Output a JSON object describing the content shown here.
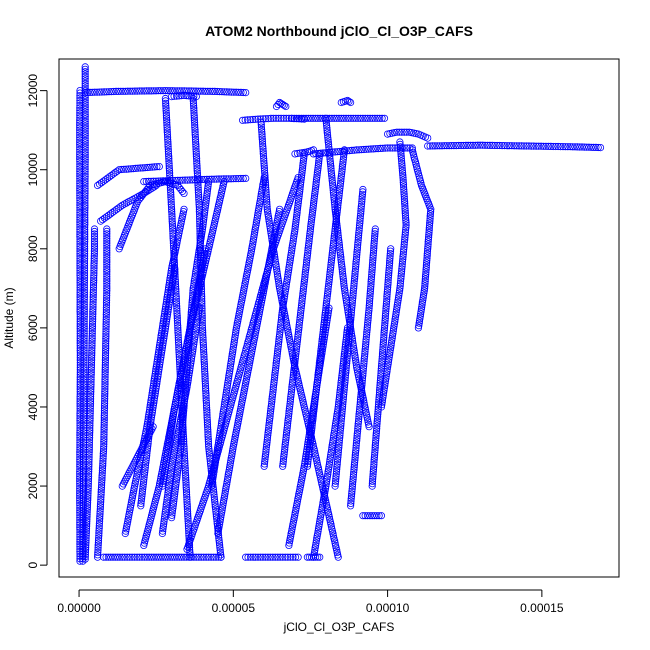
{
  "chart_data": {
    "type": "scatter",
    "title": "ATOM2 Northbound jClO_Cl_O3P_CAFS",
    "xlabel": "jClO_Cl_O3P_CAFS",
    "ylabel": "Altitude (m)",
    "xlim": [
      -6.5e-06,
      0.000175
    ],
    "ylim": [
      -300,
      12800
    ],
    "xticks": [
      0,
      5e-05,
      0.0001,
      0.00015
    ],
    "xtick_labels": [
      "0.00000",
      "0.00005",
      "0.00010",
      "0.00015"
    ],
    "yticks": [
      0,
      2000,
      4000,
      6000,
      8000,
      10000,
      12000
    ],
    "ytick_labels": [
      "0",
      "2000",
      "4000",
      "6000",
      "8000",
      "10000",
      "12000"
    ],
    "grid": false,
    "marker": "open-circle",
    "color": "#0000ff",
    "series": [
      {
        "x": [
          3e-07,
          2e-07,
          4e-07,
          3e-07,
          2e-07,
          3e-07
        ],
        "y": [
          100,
          2000,
          5000,
          8000,
          11000,
          12000
        ]
      },
      {
        "x": [
          1.2e-06,
          1.4e-06,
          1.6e-06,
          1.8e-06,
          2e-06,
          2e-06
        ],
        "y": [
          100,
          2000,
          5000,
          8000,
          10500,
          12600
        ]
      },
      {
        "x": [
          2e-06,
          3e-06,
          4e-06,
          5e-06,
          5e-06
        ],
        "y": [
          150,
          2000,
          5000,
          8000,
          8500
        ]
      },
      {
        "x": [
          6e-06,
          8e-06,
          9e-06,
          9e-06
        ],
        "y": [
          200,
          3000,
          7000,
          8500
        ]
      },
      {
        "x": [
          2e-06,
          1.2e-05,
          2.8e-05,
          4.4e-05,
          5.4e-05
        ],
        "y": [
          11950,
          11980,
          12000,
          11980,
          11950
        ]
      },
      {
        "x": [
          2.8e-05,
          3e-05,
          3.2e-05,
          3.4e-05,
          3.6e-05
        ],
        "y": [
          11800,
          9000,
          6000,
          3000,
          200
        ]
      },
      {
        "x": [
          3e-05,
          3.4e-05,
          3.8e-05
        ],
        "y": [
          11850,
          11880,
          11850
        ]
      },
      {
        "x": [
          3.7e-05,
          3.9e-05,
          4e-05,
          4.2e-05,
          4.6e-05
        ],
        "y": [
          11800,
          9000,
          6000,
          3000,
          200
        ]
      },
      {
        "x": [
          6e-06,
          1.3e-05,
          2.6e-05
        ],
        "y": [
          9600,
          10000,
          10080
        ]
      },
      {
        "x": [
          2.1e-05,
          3.2e-05,
          4.3e-05,
          5.4e-05
        ],
        "y": [
          9700,
          9730,
          9760,
          9780
        ]
      },
      {
        "x": [
          1.3e-05,
          1.9e-05,
          2.3e-05,
          2.8e-05,
          3.2e-05,
          3.4e-05
        ],
        "y": [
          8000,
          9200,
          9600,
          9700,
          9600,
          9400
        ]
      },
      {
        "x": [
          7e-06,
          1.4e-05,
          2.1e-05,
          2.5e-05
        ],
        "y": [
          8700,
          9100,
          9400,
          9600
        ]
      },
      {
        "x": [
          4.2e-05,
          4e-05,
          3.7e-05,
          3.5e-05,
          3.3e-05,
          3e-05
        ],
        "y": [
          9700,
          8500,
          7000,
          5000,
          3000,
          1200
        ]
      },
      {
        "x": [
          4.7e-05,
          4.2e-05,
          3.6e-05,
          3.1e-05,
          2.7e-05
        ],
        "y": [
          9700,
          8000,
          6000,
          4000,
          2000
        ]
      },
      {
        "x": [
          1.5e-05,
          1.8e-05,
          2.2e-05,
          2.6e-05,
          3e-05,
          3.4e-05
        ],
        "y": [
          800,
          2000,
          3500,
          5500,
          7500,
          9000
        ]
      },
      {
        "x": [
          2.1e-05,
          2.6e-05,
          3.1e-05,
          3.6e-05,
          4.1e-05
        ],
        "y": [
          500,
          2000,
          4000,
          6000,
          8000
        ]
      },
      {
        "x": [
          3.5e-05,
          4.2e-05,
          4.9e-05,
          5.6e-05,
          6.3e-05,
          7.1e-05
        ],
        "y": [
          400,
          2000,
          4000,
          6000,
          8000,
          9800
        ]
      },
      {
        "x": [
          5.3e-05,
          5.8e-05,
          6.3e-05,
          6.8e-05,
          7.3e-05
        ],
        "y": [
          11250,
          11280,
          11300,
          11300,
          11280
        ]
      },
      {
        "x": [
          6.9e-05,
          8.5e-05,
          9.9e-05
        ],
        "y": [
          11300,
          11300,
          11300
        ]
      },
      {
        "x": [
          5.9e-05,
          6.1e-05,
          6.5e-05,
          7e-05,
          7.6e-05,
          8.4e-05
        ],
        "y": [
          11200,
          9000,
          7000,
          5000,
          3000,
          200
        ]
      },
      {
        "x": [
          6.7e-05,
          6.6e-05,
          6.5e-05,
          6.4e-05
        ],
        "y": [
          11600,
          11650,
          11700,
          11600
        ]
      },
      {
        "x": [
          8.5e-05,
          8.7e-05,
          8.8e-05
        ],
        "y": [
          11700,
          11750,
          11700
        ]
      },
      {
        "x": [
          8e-05,
          8.3e-05,
          8.6e-05,
          9e-05,
          9.4e-05
        ],
        "y": [
          11300,
          9000,
          7000,
          5000,
          3500
        ]
      },
      {
        "x": [
          7.6e-05,
          9e-05,
          0.0001,
          0.000108
        ],
        "y": [
          10400,
          10500,
          10550,
          10550
        ]
      },
      {
        "x": [
          7e-05,
          7.4e-05,
          7.6e-05
        ],
        "y": [
          10400,
          10450,
          10500
        ]
      },
      {
        "x": [
          0.000113,
          0.00013,
          0.000145,
          0.00016,
          0.000169
        ],
        "y": [
          10600,
          10620,
          10600,
          10580,
          10560
        ]
      },
      {
        "x": [
          0.0001,
          0.000103,
          0.000107,
          0.00011,
          0.000113
        ],
        "y": [
          10900,
          10950,
          10950,
          10900,
          10800
        ]
      },
      {
        "x": [
          0.000104,
          0.000105,
          0.000106,
          0.000104,
          0.000101,
          9.8e-05
        ],
        "y": [
          10700,
          9800,
          8600,
          7000,
          5500,
          4000
        ]
      },
      {
        "x": [
          0.000108,
          0.000111,
          0.000114,
          0.000113,
          0.000112,
          0.00011
        ],
        "y": [
          10500,
          9600,
          9000,
          8000,
          7000,
          6000
        ]
      },
      {
        "x": [
          6e-05,
          5.6e-05,
          5.1e-05,
          4.7e-05,
          4.3e-05
        ],
        "y": [
          9800,
          8000,
          6000,
          4000,
          2000
        ]
      },
      {
        "x": [
          6.5e-05,
          6e-05,
          5.5e-05,
          5e-05,
          4.5e-05
        ],
        "y": [
          9000,
          7000,
          5000,
          3000,
          800
        ]
      },
      {
        "x": [
          7.3e-05,
          7e-05,
          6.6e-05,
          6.3e-05,
          6e-05
        ],
        "y": [
          10400,
          8500,
          6500,
          4500,
          2500
        ]
      },
      {
        "x": [
          7.8e-05,
          7.5e-05,
          7.2e-05,
          6.9e-05,
          6.6e-05
        ],
        "y": [
          10400,
          8500,
          6500,
          4500,
          2500
        ]
      },
      {
        "x": [
          8.6e-05,
          8.3e-05,
          8e-05,
          7.7e-05,
          7.4e-05
        ],
        "y": [
          10500,
          8500,
          6500,
          4500,
          2500
        ]
      },
      {
        "x": [
          9.2e-05,
          8.9e-05,
          8.6e-05,
          8.3e-05
        ],
        "y": [
          9500,
          7000,
          4500,
          2000
        ]
      },
      {
        "x": [
          9.6e-05,
          9.4e-05,
          9.1e-05,
          8.8e-05
        ],
        "y": [
          8500,
          6500,
          4000,
          1500
        ]
      },
      {
        "x": [
          0.000101,
          9.9e-05,
          9.7e-05,
          9.5e-05
        ],
        "y": [
          8000,
          6000,
          4000,
          2000
        ]
      },
      {
        "x": [
          8.7e-05,
          8.4e-05,
          8e-05,
          7.6e-05
        ],
        "y": [
          6000,
          4000,
          2000,
          200
        ]
      },
      {
        "x": [
          8.1e-05,
          7.7e-05,
          7.3e-05,
          6.8e-05
        ],
        "y": [
          6500,
          4500,
          2500,
          500
        ]
      },
      {
        "x": [
          3.9e-05,
          3.5e-05,
          3e-05,
          2.7e-05
        ],
        "y": [
          6500,
          4500,
          2500,
          800
        ]
      },
      {
        "x": [
          3.1e-05,
          2.7e-05,
          2.3e-05,
          2e-05
        ],
        "y": [
          7500,
          5500,
          3500,
          1500
        ]
      },
      {
        "x": [
          8e-06,
          1.4e-05,
          2.2e-05,
          2.8e-05,
          3.4e-05,
          4.6e-05
        ],
        "y": [
          200,
          200,
          200,
          200,
          200,
          200
        ]
      },
      {
        "x": [
          5.4e-05,
          5.8e-05,
          6.2e-05,
          6.6e-05,
          7.1e-05
        ],
        "y": [
          200,
          200,
          200,
          200,
          200
        ]
      },
      {
        "x": [
          7.4e-05,
          7.6e-05,
          7.8e-05
        ],
        "y": [
          200,
          200,
          200
        ]
      },
      {
        "x": [
          1.4e-05,
          2.4e-05
        ],
        "y": [
          2000,
          3500
        ]
      },
      {
        "x": [
          9.2e-05,
          9.8e-05
        ],
        "y": [
          1250,
          1250
        ]
      }
    ]
  }
}
